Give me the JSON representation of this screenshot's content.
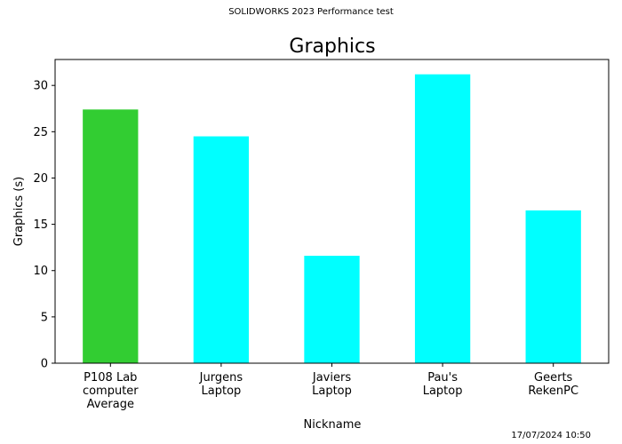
{
  "figure": {
    "suptitle": "SOLIDWORKS 2023 Performance test",
    "footer": "17/07/2024 10:50"
  },
  "chart_data": {
    "type": "bar",
    "title": "Graphics",
    "xlabel": "Nickname",
    "ylabel": "Graphics (s)",
    "categories": [
      [
        "P108 Lab",
        "computer",
        "Average"
      ],
      [
        "Jurgens",
        "Laptop"
      ],
      [
        "Javiers",
        "Laptop"
      ],
      [
        "Pau's",
        "Laptop"
      ],
      [
        "Geerts",
        "RekenPC"
      ]
    ],
    "values": [
      27.4,
      24.5,
      11.6,
      31.2,
      16.5
    ],
    "bar_colors": [
      "#32cd32",
      "#00ffff",
      "#00ffff",
      "#00ffff",
      "#00ffff"
    ],
    "ylim": [
      0,
      32.8
    ],
    "yticks": [
      0,
      5,
      10,
      15,
      20,
      25,
      30
    ],
    "grid": false,
    "legend": "none"
  }
}
